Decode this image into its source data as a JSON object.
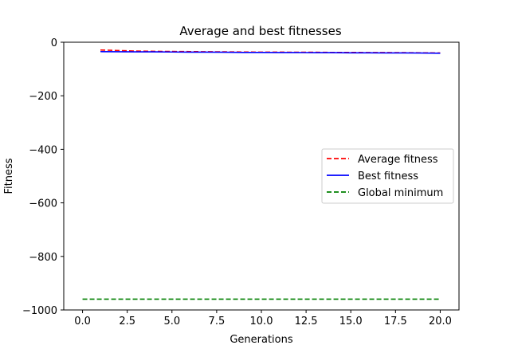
{
  "chart_data": {
    "type": "line",
    "title": "Average and best fitnesses",
    "xlabel": "Generations",
    "ylabel": "Fitness",
    "xlim": [
      -1.05,
      21.05
    ],
    "ylim": [
      -1000,
      0
    ],
    "xticks": [
      "0.0",
      "2.5",
      "5.0",
      "7.5",
      "10.0",
      "12.5",
      "15.0",
      "17.5",
      "20.0"
    ],
    "xtick_values": [
      0,
      2.5,
      5,
      7.5,
      10,
      12.5,
      15,
      17.5,
      20
    ],
    "yticks": [
      "0",
      "−200",
      "−400",
      "−600",
      "−800",
      "−1000"
    ],
    "ytick_values": [
      0,
      -200,
      -400,
      -600,
      -800,
      -1000
    ],
    "grid": false,
    "legend_position": "center-right",
    "series": [
      {
        "name": "Average fitness",
        "color": "#ff0000",
        "style": "dashed",
        "x": [
          1,
          2,
          3,
          4,
          5,
          6,
          7,
          8,
          9,
          10,
          11,
          12,
          13,
          14,
          15,
          16,
          17,
          18,
          19,
          20
        ],
        "values": [
          -29,
          -31,
          -33,
          -34,
          -34.5,
          -35,
          -35.5,
          -36,
          -36.5,
          -37,
          -37,
          -37.5,
          -37.5,
          -38,
          -38,
          -38.5,
          -38.5,
          -39,
          -39.5,
          -40
        ]
      },
      {
        "name": "Best fitness",
        "color": "#0000ff",
        "style": "solid",
        "x": [
          1,
          2,
          3,
          4,
          5,
          6,
          7,
          8,
          9,
          10,
          11,
          12,
          13,
          14,
          15,
          16,
          17,
          18,
          19,
          20
        ],
        "values": [
          -35,
          -35.5,
          -36,
          -36,
          -36.5,
          -37,
          -37,
          -37.5,
          -38,
          -38,
          -38.5,
          -38.5,
          -39,
          -39,
          -39.5,
          -39.5,
          -40,
          -40,
          -40.5,
          -41
        ]
      },
      {
        "name": "Global minimum",
        "color": "#008000",
        "style": "dashed",
        "x": [
          0,
          20
        ],
        "values": [
          -959.64,
          -959.64
        ]
      }
    ]
  }
}
